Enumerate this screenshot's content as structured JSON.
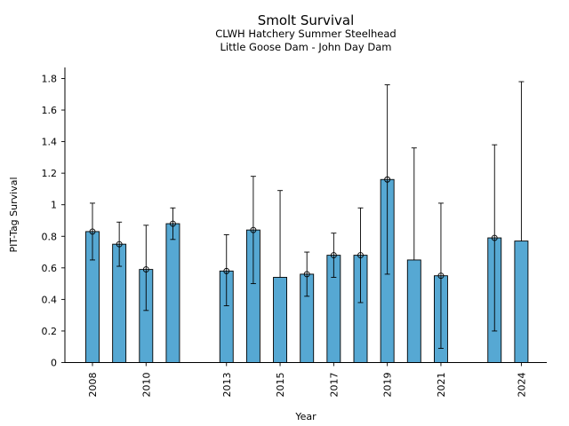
{
  "chart_data": {
    "type": "bar",
    "title": "Smolt Survival",
    "subtitle_lines": [
      "CLWH Hatchery Summer Steelhead",
      "Little Goose Dam - John Day Dam"
    ],
    "xlabel": "Year",
    "ylabel": "PIT-Tag Survival",
    "xlim": [
      2007,
      2025
    ],
    "ylim": [
      0,
      1.87
    ],
    "x_ticks": [
      2008,
      2010,
      2013,
      2015,
      2017,
      2019,
      2021,
      2024
    ],
    "y_ticks": [
      0,
      0.2,
      0.4,
      0.6,
      0.8,
      1,
      1.2,
      1.4,
      1.6,
      1.8
    ],
    "y_tick_labels": [
      "0",
      "0.2",
      "0.4",
      "0.6",
      "0.8",
      "1",
      "1.2",
      "1.4",
      "1.6",
      "1.8"
    ],
    "bar_color": "#56a8d3",
    "grid": false,
    "series": [
      {
        "points": [
          {
            "year": 2008,
            "value": 0.83,
            "lower": 0.65,
            "upper": 1.01,
            "marker": true
          },
          {
            "year": 2009,
            "value": 0.75,
            "lower": 0.61,
            "upper": 0.89,
            "marker": true
          },
          {
            "year": 2010,
            "value": 0.59,
            "lower": 0.33,
            "upper": 0.87,
            "marker": true
          },
          {
            "year": 2011,
            "value": 0.88,
            "lower": 0.78,
            "upper": 0.98,
            "marker": true
          },
          {
            "year": 2013,
            "value": 0.58,
            "lower": 0.36,
            "upper": 0.81,
            "marker": true
          },
          {
            "year": 2014,
            "value": 0.84,
            "lower": 0.5,
            "upper": 1.18,
            "marker": true
          },
          {
            "year": 2015,
            "value": 0.54,
            "lower": 0.54,
            "upper": 1.09,
            "marker": false
          },
          {
            "year": 2016,
            "value": 0.56,
            "lower": 0.42,
            "upper": 0.7,
            "marker": true
          },
          {
            "year": 2017,
            "value": 0.68,
            "lower": 0.54,
            "upper": 0.82,
            "marker": true
          },
          {
            "year": 2018,
            "value": 0.68,
            "lower": 0.38,
            "upper": 0.98,
            "marker": true
          },
          {
            "year": 2019,
            "value": 1.16,
            "lower": 0.56,
            "upper": 1.76,
            "marker": true
          },
          {
            "year": 2020,
            "value": 0.65,
            "lower": 0.65,
            "upper": 1.36,
            "marker": false
          },
          {
            "year": 2021,
            "value": 0.55,
            "lower": 0.09,
            "upper": 1.01,
            "marker": true
          },
          {
            "year": 2023,
            "value": 0.79,
            "lower": 0.2,
            "upper": 1.38,
            "marker": true
          },
          {
            "year": 2024,
            "value": 0.77,
            "lower": 0.77,
            "upper": 1.78,
            "marker": false
          }
        ]
      }
    ]
  }
}
